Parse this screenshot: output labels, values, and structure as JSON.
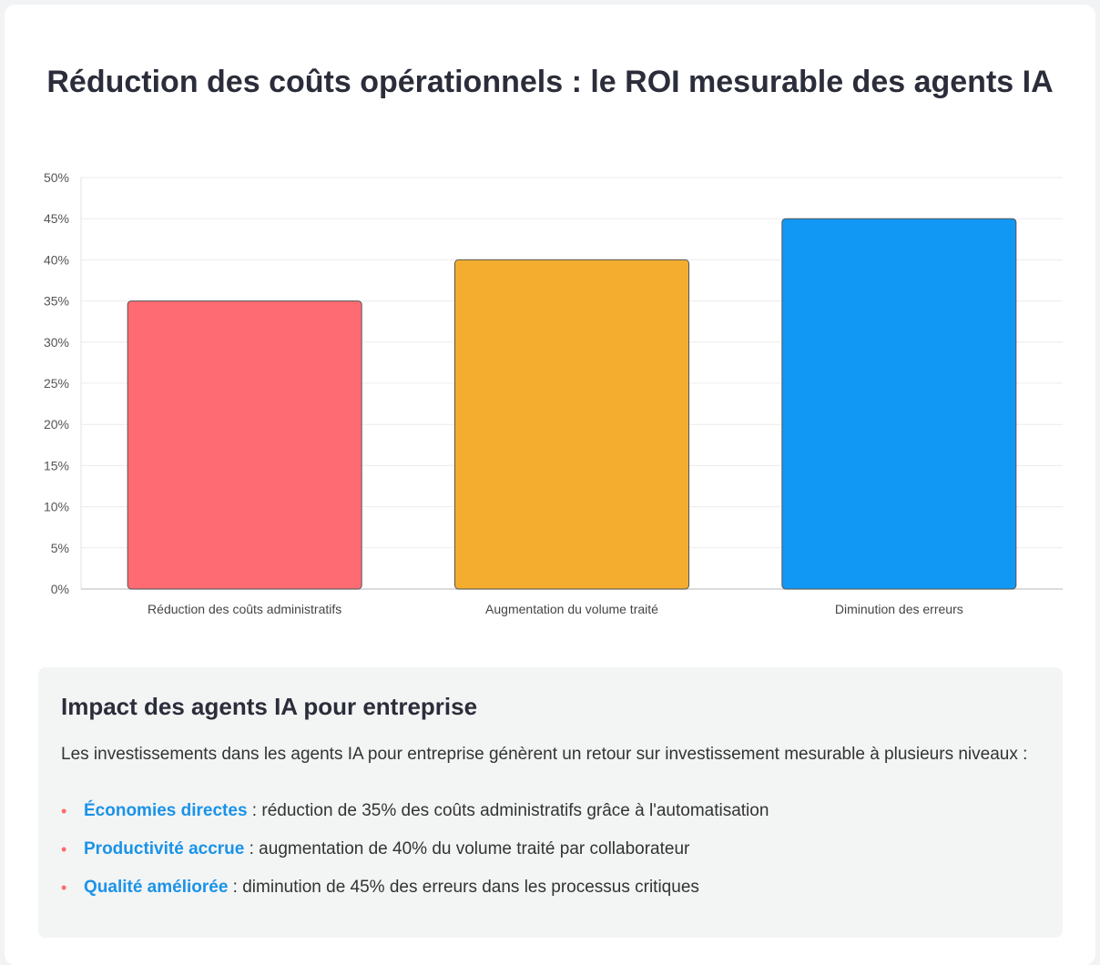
{
  "title": "Réduction des coûts opérationnels : le ROI mesurable des agents IA",
  "chart_data": {
    "type": "bar",
    "categories": [
      "Réduction des coûts administratifs",
      "Augmentation du volume traité",
      "Diminution des erreurs"
    ],
    "values": [
      35,
      40,
      45
    ],
    "colors": [
      "#ff6b72",
      "#f4ad2f",
      "#1197f4"
    ],
    "ylim": [
      0,
      50
    ],
    "yticks": [
      0,
      5,
      10,
      15,
      20,
      25,
      30,
      35,
      40,
      45,
      50
    ],
    "ytick_suffix": "%",
    "grid": true,
    "legend": "none"
  },
  "impact": {
    "heading": "Impact des agents IA pour entreprise",
    "intro": "Les investissements dans les agents IA pour entreprise génèrent un retour sur investissement mesurable à plusieurs niveaux :",
    "bullet_symbol": "•",
    "items": [
      {
        "label": "Économies directes",
        "text": " : réduction de 35% des coûts administratifs grâce à l'automatisation"
      },
      {
        "label": "Productivité accrue",
        "text": " : augmentation de 40% du volume traité par collaborateur"
      },
      {
        "label": "Qualité améliorée",
        "text": " : diminution de 45% des erreurs dans les processus critiques"
      }
    ]
  }
}
